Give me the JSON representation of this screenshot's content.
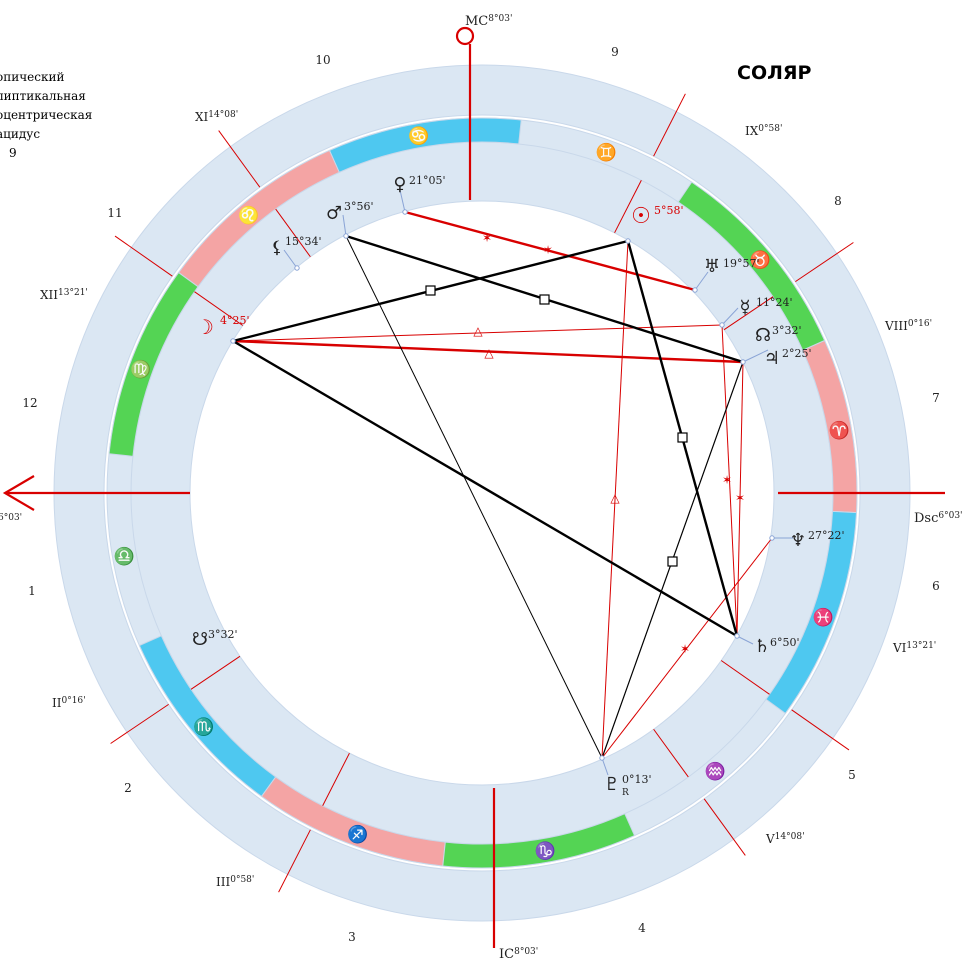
{
  "title": "СОЛЯР",
  "info": {
    "line1": "опический",
    "line2": "липтикальная",
    "line3": "оцентрическая",
    "line4": "ацидус",
    "line5": "9"
  },
  "colors": {
    "ring": "#dbe7f3",
    "red": "#d80000",
    "fire": "#f4a4a4",
    "earth": "#54d454",
    "water": "#4ec8f0",
    "glyph": "#5a1e8a"
  },
  "angles": {
    "mc": {
      "name": "MC",
      "deg": "8°03'"
    },
    "ic": {
      "name": "IC",
      "deg": "8°03'"
    },
    "asc": {
      "deg": "6°03'"
    },
    "dsc": {
      "name": "Dsc",
      "deg": "6°03'"
    }
  },
  "house_numbers": [
    "1",
    "2",
    "3",
    "4",
    "5",
    "6",
    "7",
    "8",
    "9",
    "10",
    "11",
    "12"
  ],
  "cusps": [
    {
      "name": "II",
      "deg": "0°16'"
    },
    {
      "name": "III",
      "deg": "0°58'"
    },
    {
      "name": "V",
      "deg": "14°08'"
    },
    {
      "name": "VI",
      "deg": "13°21'"
    },
    {
      "name": "VIII",
      "deg": "0°16'"
    },
    {
      "name": "IX",
      "deg": "0°58'"
    },
    {
      "name": "XI",
      "deg": "14°08'"
    },
    {
      "name": "XII",
      "deg": "13°21'"
    }
  ],
  "signs": [
    {
      "name": "aries-sign",
      "glyph": "♈"
    },
    {
      "name": "taurus-sign",
      "glyph": "♉"
    },
    {
      "name": "gemini-sign",
      "glyph": "♊"
    },
    {
      "name": "cancer-sign",
      "glyph": "♋"
    },
    {
      "name": "leo-sign",
      "glyph": "♌"
    },
    {
      "name": "virgo-sign",
      "glyph": "♍"
    },
    {
      "name": "libra-sign",
      "glyph": "♎"
    },
    {
      "name": "scorpio-sign",
      "glyph": "♏"
    },
    {
      "name": "sagittarius-sign",
      "glyph": "♐"
    },
    {
      "name": "capricorn-sign",
      "glyph": "♑"
    },
    {
      "name": "aquarius-sign",
      "glyph": "♒"
    },
    {
      "name": "pisces-sign",
      "glyph": "♓"
    }
  ],
  "planets": [
    {
      "name": "sun",
      "glyph": "☉",
      "deg": "5°58'"
    },
    {
      "name": "moon",
      "glyph": "☽",
      "deg": "4°25'"
    },
    {
      "name": "mercury",
      "glyph": "☿",
      "deg": "11°24'"
    },
    {
      "name": "venus",
      "glyph": "♀",
      "deg": "21°05'"
    },
    {
      "name": "mars",
      "glyph": "♂",
      "deg": "3°56'"
    },
    {
      "name": "jupiter",
      "glyph": "♃",
      "deg": "2°25'"
    },
    {
      "name": "saturn",
      "glyph": "♄",
      "deg": "6°50'"
    },
    {
      "name": "uranus",
      "glyph": "♅",
      "deg": "19°57'"
    },
    {
      "name": "neptune",
      "glyph": "♆",
      "deg": "27°22'"
    },
    {
      "name": "pluto",
      "glyph": "♇",
      "deg": "0°13'",
      "retro": "R"
    },
    {
      "name": "north-node",
      "glyph": "☊",
      "deg": "3°32'"
    },
    {
      "name": "south-node",
      "glyph": "☋",
      "deg": "3°32'"
    },
    {
      "name": "lilith",
      "glyph": "⚸",
      "deg": "15°34'"
    }
  ]
}
